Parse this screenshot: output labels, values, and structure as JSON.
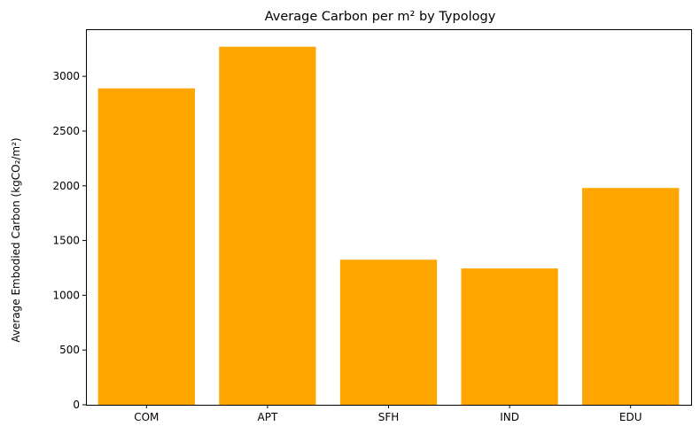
{
  "chart_data": {
    "type": "bar",
    "title": "Average Carbon per m² by Typology",
    "xlabel": "",
    "ylabel": "Average Embodied Carbon (kgCO₂/m²)",
    "categories": [
      "COM",
      "APT",
      "SFH",
      "IND",
      "EDU"
    ],
    "values": [
      2890,
      3270,
      1325,
      1245,
      1980
    ],
    "ylim": [
      0,
      3430
    ],
    "yticks": [
      0,
      500,
      1000,
      1500,
      2000,
      2500,
      3000
    ],
    "grid": false,
    "bar_color": "#ffa500"
  }
}
